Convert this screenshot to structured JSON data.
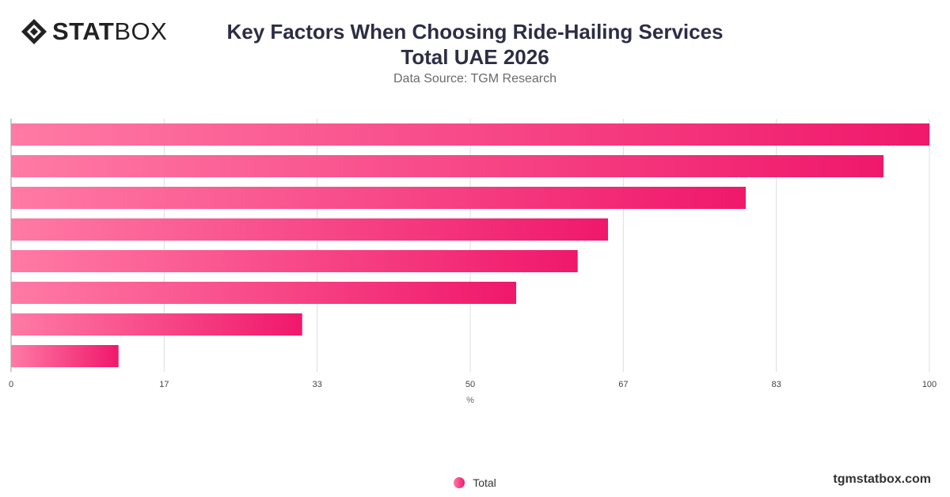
{
  "brand": {
    "logo_bold": "STAT",
    "logo_light": "BOX",
    "footer_url": "tgmstatbox.com"
  },
  "header": {
    "title_line1": "Key Factors When Choosing Ride-Hailing Services",
    "title_line2": "Total UAE 2026",
    "subtitle": "Data Source: TGM Research"
  },
  "colors": {
    "bar_start": "#ff7aa5",
    "bar_end": "#f0186b",
    "grid": "#dddddd",
    "axis_text": "#444444"
  },
  "chart_data": {
    "type": "bar",
    "orientation": "horizontal",
    "categories": [
      "",
      "",
      "",
      "",
      "",
      "",
      "",
      ""
    ],
    "series": [
      {
        "name": "Total",
        "values": [
          100,
          95,
          80,
          65,
          61.7,
          55,
          31.7,
          11.7
        ]
      }
    ],
    "xlabel": "%",
    "xlim": [
      0,
      100
    ],
    "xticks": [
      "0",
      "17",
      "33",
      "50",
      "67",
      "83",
      "100"
    ],
    "grid": true,
    "legend_position": "bottom-center"
  }
}
